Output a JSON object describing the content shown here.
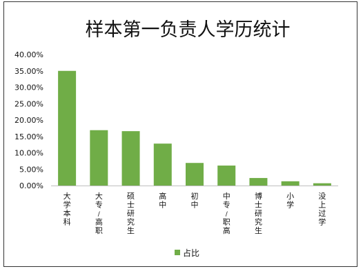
{
  "chart_data": {
    "type": "bar",
    "title": "样本第一负责人学历统计",
    "categories": [
      "大学本科",
      "大专/高职",
      "硕士研究生",
      "高中",
      "初中",
      "中专/职高",
      "博士研究生",
      "小学",
      "没上过学"
    ],
    "series": [
      {
        "name": "占比",
        "values": [
          35.0,
          16.9,
          16.6,
          12.8,
          6.9,
          6.1,
          2.3,
          1.3,
          0.7
        ],
        "color": "#70ad47"
      }
    ],
    "y_ticks": [
      "0.00%",
      "5.00%",
      "10.00%",
      "15.00%",
      "20.00%",
      "25.00%",
      "30.00%",
      "35.00%",
      "40.00%"
    ],
    "ylim": [
      0,
      40
    ],
    "grid": false,
    "legend_position": "bottom"
  }
}
